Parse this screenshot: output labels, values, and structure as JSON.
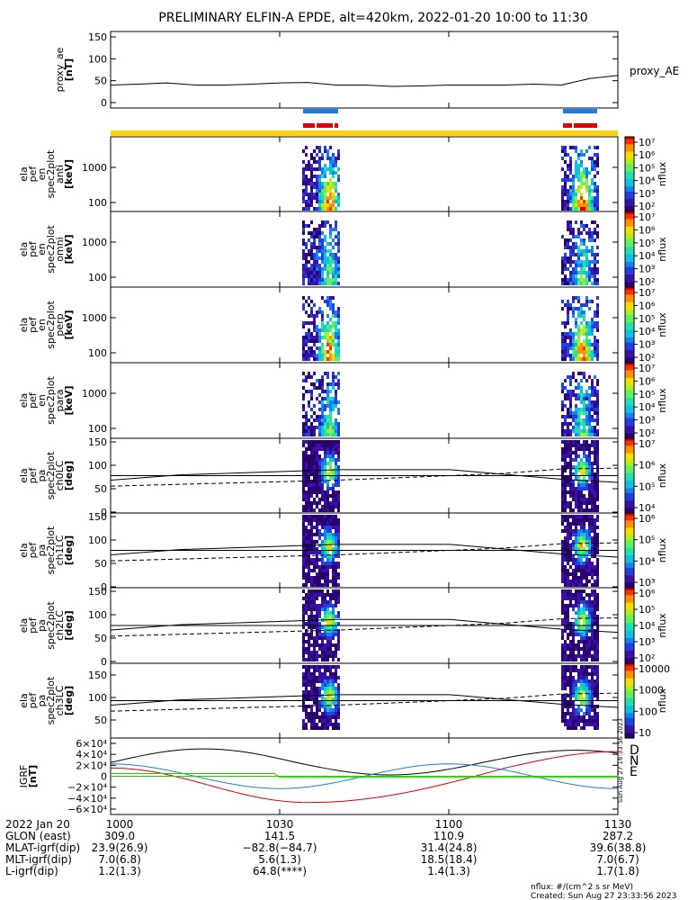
{
  "title": "PRELIMINARY ELFIN-A EPDE, alt=420km, 2022-01-20 10:00 to 11:30",
  "colors": {
    "axis": "#000000",
    "yellow": "#ffd200",
    "blue": "#1e7be6",
    "red": "#e00000",
    "green": "#22cc00"
  },
  "panels": [
    {
      "id": "proxy-ae",
      "ylabel": [
        "proxy_ae",
        "[nT]"
      ],
      "right_label": "proxy_AE",
      "ticks": [
        "150",
        "100",
        "50",
        "0"
      ]
    },
    {
      "id": "anti",
      "ylabel": [
        "ela",
        "pef",
        "en",
        "spec2plot",
        "anti",
        "[keV]"
      ],
      "ticks": [
        "1000",
        "100"
      ],
      "cbar_label": "nflux",
      "cbar_ticks": [
        "10⁷",
        "10⁶",
        "10⁵",
        "10⁴",
        "10³",
        "10²"
      ]
    },
    {
      "id": "omni",
      "ylabel": [
        "ela",
        "pef",
        "en",
        "spec2plot",
        "omni",
        "[keV]"
      ],
      "ticks": [
        "1000",
        "100"
      ],
      "cbar_label": "nflux",
      "cbar_ticks": [
        "10⁷",
        "10⁶",
        "10⁵",
        "10⁴",
        "10³",
        "10²"
      ]
    },
    {
      "id": "perp",
      "ylabel": [
        "ela",
        "pef",
        "en",
        "spec2plot",
        "perp",
        "[keV]"
      ],
      "ticks": [
        "1000",
        "100"
      ],
      "cbar_label": "nflux",
      "cbar_ticks": [
        "10⁷",
        "10⁶",
        "10⁵",
        "10⁴",
        "10³",
        "10²"
      ]
    },
    {
      "id": "para",
      "ylabel": [
        "ela",
        "pef",
        "en",
        "spec2plot",
        "para",
        "[keV]"
      ],
      "ticks": [
        "1000",
        "100"
      ],
      "cbar_label": "nflux",
      "cbar_ticks": [
        "10⁷",
        "10⁶",
        "10⁵",
        "10⁴",
        "10³",
        "10²"
      ]
    },
    {
      "id": "ch0",
      "ylabel": [
        "ela",
        "pef",
        "pa",
        "spec2plot",
        "ch0LC",
        "[deg]"
      ],
      "ticks": [
        "150",
        "100",
        "50",
        "0"
      ],
      "cbar_label": "nflux",
      "cbar_ticks": [
        "10⁷",
        "10⁶",
        "10⁵",
        "10⁴"
      ]
    },
    {
      "id": "ch1",
      "ylabel": [
        "ela",
        "pef",
        "pa",
        "spec2plot",
        "ch1LC",
        "[deg]"
      ],
      "ticks": [
        "150",
        "100",
        "50",
        "0"
      ],
      "cbar_label": "nflux",
      "cbar_ticks": [
        "10⁶",
        "10⁵",
        "10⁴",
        "10³"
      ]
    },
    {
      "id": "ch2",
      "ylabel": [
        "ela",
        "pef",
        "pa",
        "spec2plot",
        "ch2LC",
        "[deg]"
      ],
      "ticks": [
        "150",
        "100",
        "50",
        "0"
      ],
      "cbar_label": "nflux",
      "cbar_ticks": [
        "10⁶",
        "10⁵",
        "10⁴",
        "10³",
        "10²"
      ]
    },
    {
      "id": "ch3",
      "ylabel": [
        "ela",
        "pef",
        "pa",
        "spec2plot",
        "ch3LC",
        "[deg]"
      ],
      "ticks": [
        "150",
        "100",
        "50"
      ],
      "cbar_label": "nflux",
      "cbar_ticks": [
        "10000",
        "1000",
        "100",
        "10"
      ]
    },
    {
      "id": "igrf",
      "ylabel": [
        "IGRF",
        "[nT]"
      ],
      "ticks": [
        "6×10⁴",
        "4×10⁴",
        "2×10⁴",
        "0",
        "−2×10⁴",
        "−4×10⁴",
        "−6×10⁴"
      ],
      "right_labels": [
        {
          "text": "D",
          "color": "#e00000"
        },
        {
          "text": "N",
          "color": "#1e7be6"
        },
        {
          "text": "E",
          "color": "#22cc00"
        }
      ]
    }
  ],
  "proxy_ae_series": {
    "x": [
      0,
      5,
      10,
      15,
      20,
      25,
      30,
      35,
      40,
      45,
      50,
      55,
      60,
      65,
      70,
      75,
      80,
      85,
      90
    ],
    "y": [
      40,
      42,
      45,
      40,
      40,
      42,
      45,
      46,
      40,
      40,
      37,
      38,
      40,
      40,
      40,
      42,
      40,
      55,
      62
    ]
  },
  "xaxis": {
    "ticks": [
      "1000",
      "1030",
      "1100",
      "1130"
    ],
    "minutes": [
      0,
      30,
      60,
      90
    ]
  },
  "ephemeris": {
    "labels": [
      "2022 Jan 20",
      "GLON (east)",
      "MLAT-igrf(dip)",
      "MLT-igrf(dip)",
      "L-igrf(dip)"
    ],
    "columns": [
      [
        "1000",
        "309.0",
        "23.9(26.9)",
        "7.0(6.8)",
        "1.2(1.3)"
      ],
      [
        "1030",
        "141.5",
        "−82.8(−84.7)",
        "5.6(1.3)",
        "64.8(****)"
      ],
      [
        "1100",
        "110.9",
        "31.4(24.8)",
        "18.5(18.4)",
        "1.4(1.3)"
      ],
      [
        "1130",
        "287.2",
        "39.6(38.8)",
        "7.0(6.7)",
        "1.7(1.8)"
      ]
    ]
  },
  "footer": {
    "units": "nflux: #/(cm^2 s sr MeV)",
    "created": "Created: Sun Aug 27 23:33:56 2023",
    "side_stamp": "Sun Aug 27 16:33:56 2023"
  }
}
